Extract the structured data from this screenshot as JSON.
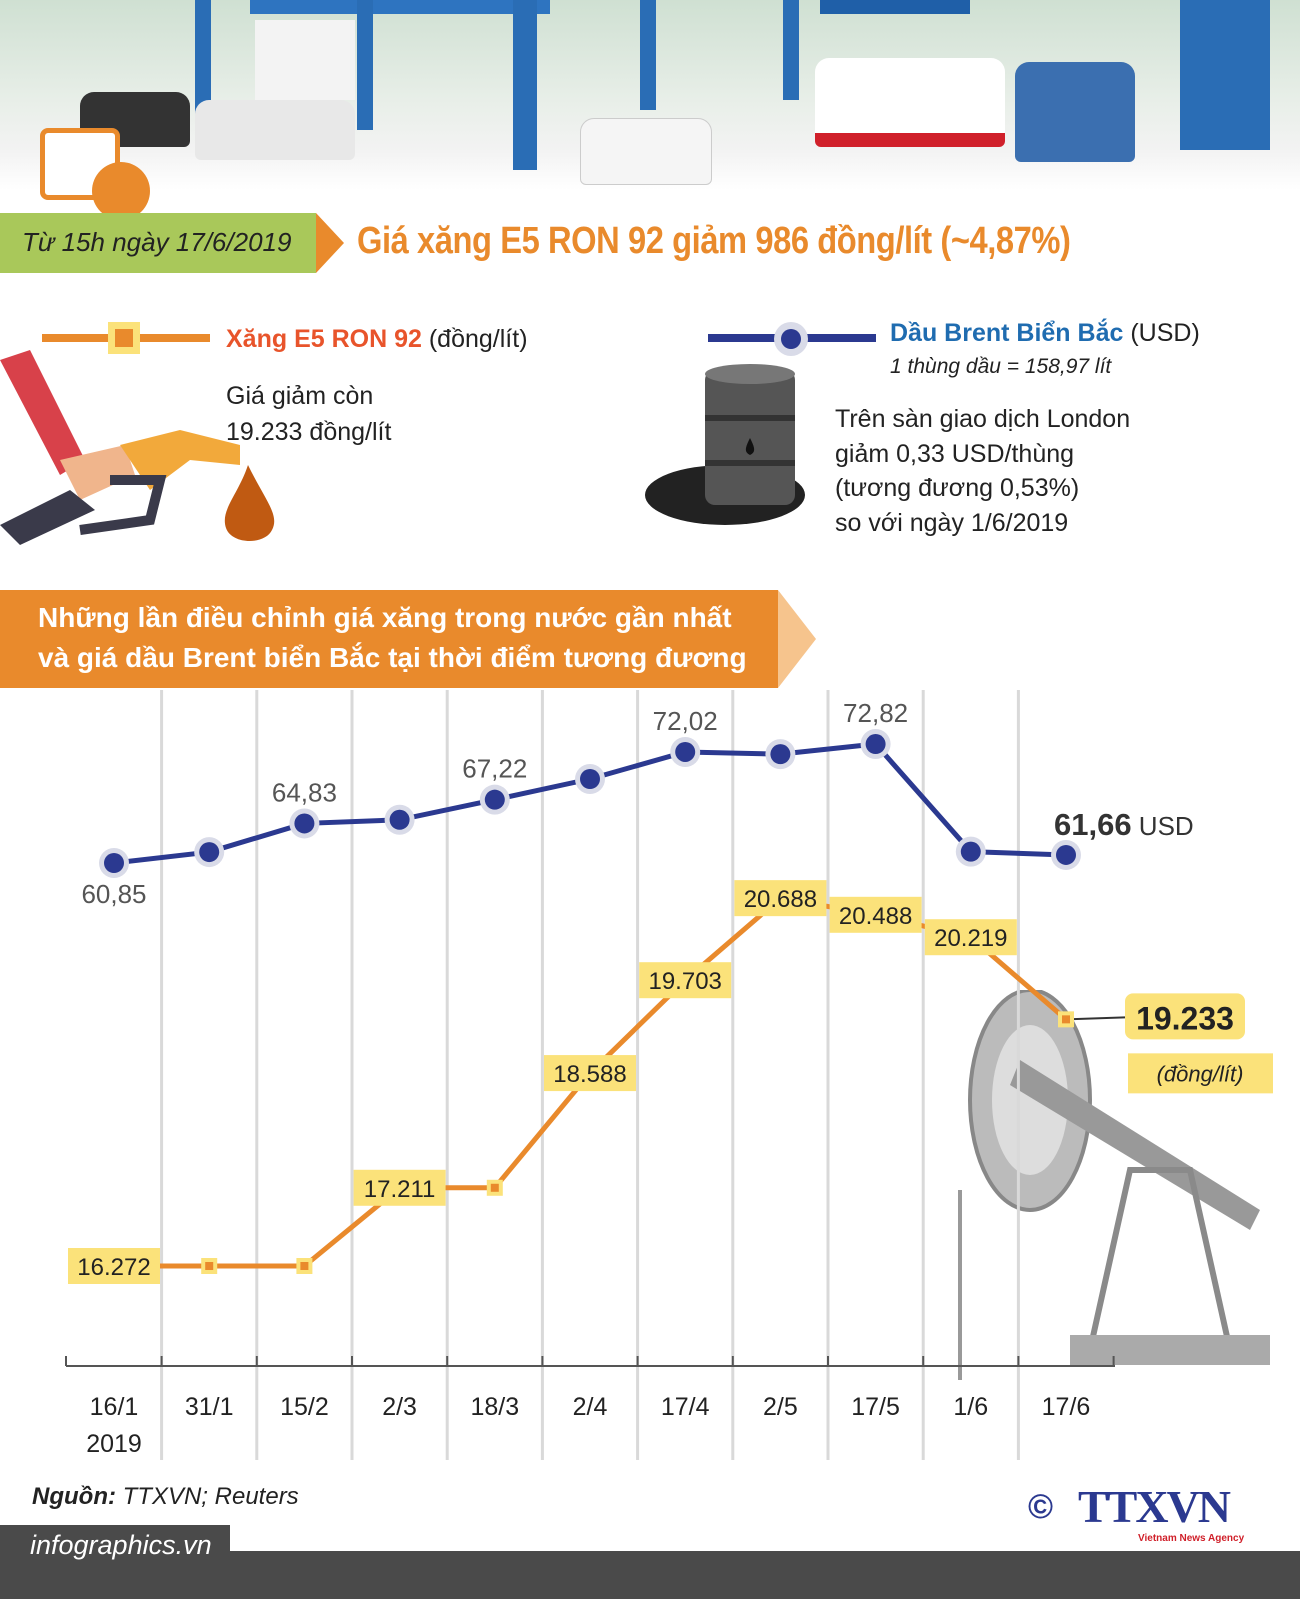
{
  "header": {
    "date_badge": "Từ 15h ngày 17/6/2019",
    "headline": "Giá xăng E5 RON 92 giảm 986 đồng/lít (~4,87%)"
  },
  "legend": {
    "gasoline": {
      "name": "Xăng E5 RON 92",
      "unit": "(đồng/lít)",
      "note_line1": "Giá giảm còn",
      "note_line2": "19.233 đồng/lít",
      "color": "#e98a2c"
    },
    "brent": {
      "name": "Dầu Brent Biển Bắc",
      "unit": "(USD)",
      "conversion": "1 thùng dầu = 158,97 lít",
      "note_lines": [
        "Trên sàn giao dịch London",
        "giảm 0,33 USD/thùng",
        "(tương đương 0,53%)",
        "so với ngày 1/6/2019"
      ],
      "color": "#2b3990"
    }
  },
  "section": {
    "title_line1": "Những lần điều chỉnh giá xăng trong nước gần nhất",
    "title_line2": "và giá dầu Brent biển Bắc tại thời điểm tương đương"
  },
  "chart_data": {
    "type": "line",
    "categories": [
      "16/1",
      "31/1",
      "15/2",
      "2/3",
      "18/3",
      "2/4",
      "17/4",
      "2/5",
      "17/5",
      "1/6",
      "17/6"
    ],
    "year_label": "2019",
    "series": [
      {
        "name": "Dầu Brent Biển Bắc",
        "unit": "USD",
        "color": "#2b3990",
        "values": [
          60.85,
          61.95,
          64.83,
          65.2,
          67.22,
          69.3,
          72.02,
          71.8,
          72.82,
          61.99,
          61.66
        ],
        "labels": [
          "60,85",
          "",
          "64,83",
          "",
          "67,22",
          "",
          "72,02",
          "",
          "72,82",
          "",
          "61,66"
        ],
        "last_label_unit": "USD"
      },
      {
        "name": "Xăng E5 RON 92",
        "unit": "(đồng/lít)",
        "color": "#e98a2c",
        "values": [
          16272,
          16272,
          16272,
          17211,
          17211,
          18588,
          19703,
          20688,
          20488,
          20219,
          19233
        ],
        "labels": [
          "16.272",
          "",
          "",
          "17.211",
          "",
          "18.588",
          "19.703",
          "20.688",
          "20.488",
          "20.219",
          "19.233"
        ]
      }
    ],
    "grid": "vertical"
  },
  "footer": {
    "source_label": "Nguồn:",
    "source_value": "TTXVN; Reuters",
    "site": "infographics.vn",
    "copyright": "©",
    "logo": "TTXVN",
    "logo_sub": "Vietnam News Agency"
  }
}
